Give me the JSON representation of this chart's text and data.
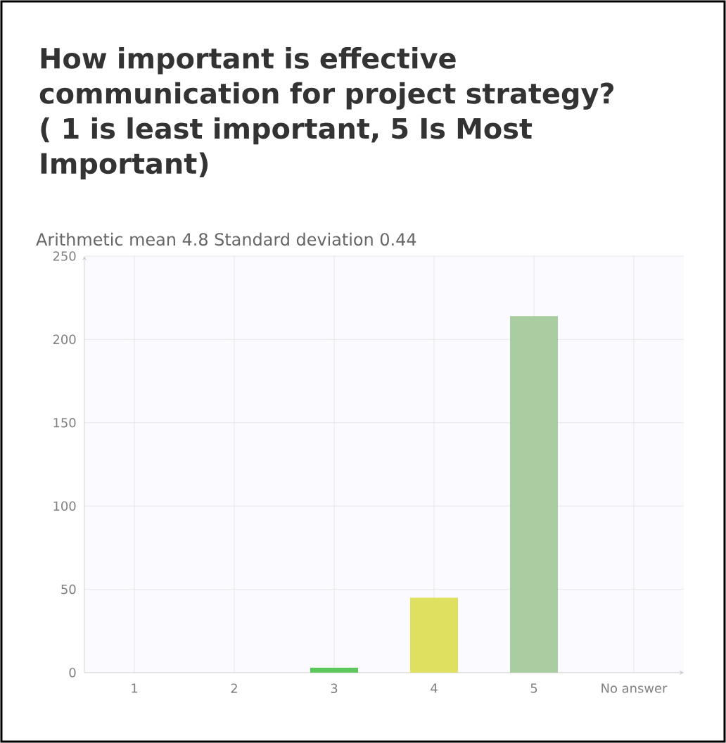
{
  "chart_data": {
    "type": "bar",
    "title": "How important is effective communication for project strategy? ( 1 is least important, 5 Is Most Important)",
    "subtitle": "Arithmetic mean  4.8  Standard deviation  0.44",
    "categories": [
      "1",
      "2",
      "3",
      "4",
      "5",
      "No answer"
    ],
    "values": [
      0,
      0,
      3,
      45,
      214,
      0
    ],
    "colors": [
      "#5cc85c",
      "#5cc85c",
      "#5cc85c",
      "#e0e060",
      "#a9cca1",
      "#a9cca1"
    ],
    "ylim": [
      0,
      250
    ],
    "yticks": [
      0,
      50,
      100,
      150,
      200,
      250
    ],
    "grid": true
  }
}
